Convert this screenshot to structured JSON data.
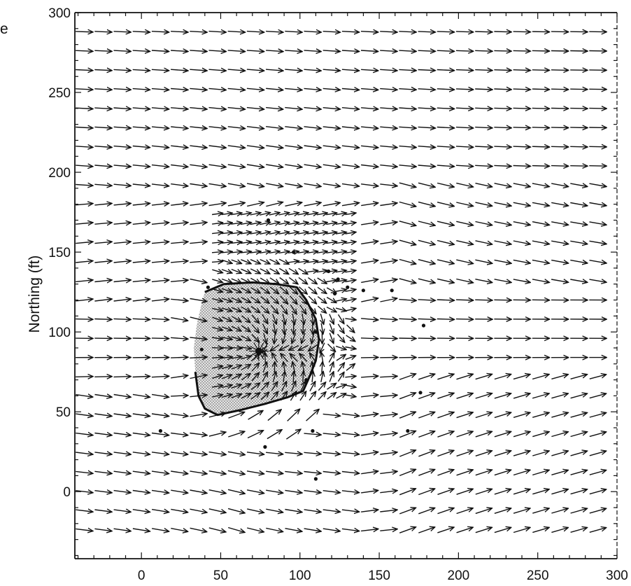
{
  "page_fragment": "e",
  "chart_data": {
    "type": "vector-field",
    "ylabel": "Northing (ft)",
    "xlabel": "",
    "xlim": [
      -42,
      300
    ],
    "ylim": [
      -42,
      300
    ],
    "x_ticks": [
      0,
      50,
      100,
      150,
      200,
      250,
      300
    ],
    "y_ticks": [
      0,
      50,
      100,
      150,
      200,
      250,
      300
    ],
    "x_tick_labels": [
      "0",
      "50",
      "100",
      "150",
      "200",
      "250",
      "300"
    ],
    "y_tick_labels": [
      "0",
      "50",
      "100",
      "150",
      "200",
      "250",
      "300"
    ],
    "grid": false,
    "field": {
      "spacing": 12,
      "x_start": -36,
      "x_end": 288,
      "y_start": -24,
      "y_end": 288,
      "uniform_direction_deg": 0,
      "well_center": [
        74,
        88
      ],
      "fine_spacing": 6,
      "fine_region": {
        "x": [
          48,
          132
        ],
        "y": [
          60,
          176
        ]
      }
    },
    "shaded_region": {
      "fill": "#cfcfcf",
      "outline": [
        [
          40,
          125
        ],
        [
          52,
          130
        ],
        [
          70,
          131
        ],
        [
          85,
          130
        ],
        [
          98,
          128
        ],
        [
          104,
          120
        ],
        [
          110,
          108
        ],
        [
          112,
          95
        ],
        [
          110,
          82
        ],
        [
          106,
          72
        ],
        [
          102,
          63
        ],
        [
          92,
          59
        ],
        [
          78,
          55
        ],
        [
          62,
          51
        ],
        [
          48,
          48
        ],
        [
          40,
          52
        ],
        [
          36,
          60
        ],
        [
          34,
          75
        ],
        [
          33,
          90
        ],
        [
          35,
          105
        ],
        [
          38,
          118
        ]
      ]
    },
    "points": [
      [
        80,
        170
      ],
      [
        96,
        150
      ],
      [
        118,
        138
      ],
      [
        124,
        133
      ],
      [
        130,
        128
      ],
      [
        122,
        124
      ],
      [
        140,
        126
      ],
      [
        158,
        126
      ],
      [
        110,
        100
      ],
      [
        178,
        104
      ],
      [
        42,
        128
      ],
      [
        38,
        89
      ],
      [
        104,
        70
      ],
      [
        176,
        62
      ],
      [
        12,
        38
      ],
      [
        108,
        38
      ],
      [
        78,
        28
      ],
      [
        168,
        38
      ],
      [
        110,
        8
      ]
    ],
    "colors": {
      "arrow": "#111111",
      "axis": "#111111",
      "shade": "#cfcfcf",
      "point": "#111111"
    }
  }
}
